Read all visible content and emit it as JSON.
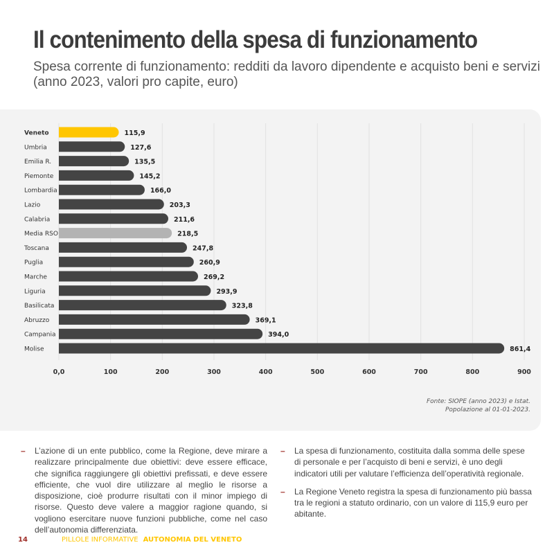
{
  "header": {
    "title": "Il contenimento della spesa di funzionamento",
    "subtitle": "Spesa corrente di funzionamento: redditi da lavoro dipendente e acquisto beni e servizi (anno 2023, valori pro capite, euro)"
  },
  "chart_data": {
    "type": "bar",
    "orientation": "horizontal",
    "categories": [
      "Veneto",
      "Umbria",
      "Emilia R.",
      "Piemonte",
      "Lombardia",
      "Lazio",
      "Calabria",
      "Media RSO",
      "Toscana",
      "Puglia",
      "Marche",
      "Liguria",
      "Basilicata",
      "Abruzzo",
      "Campania",
      "Molise"
    ],
    "values": [
      115.9,
      127.6,
      135.5,
      145.2,
      166.0,
      203.3,
      211.6,
      218.5,
      247.8,
      260.9,
      269.2,
      293.9,
      323.8,
      369.1,
      394.0,
      861.4
    ],
    "labels": [
      "115,9",
      "127,6",
      "135,5",
      "145,2",
      "166,0",
      "203,3",
      "211,6",
      "218,5",
      "247,8",
      "260,9",
      "269,2",
      "293,9",
      "323,8",
      "369,1",
      "394,0",
      "861,4"
    ],
    "xlim": [
      0,
      900
    ],
    "xticks": [
      "0,0",
      "100",
      "200",
      "300",
      "400",
      "500",
      "600",
      "700",
      "800",
      "900"
    ],
    "colors": {
      "default": "#444444",
      "Veneto": "#ffc600",
      "Media RSO": "#b3b3b3"
    },
    "grid": true
  },
  "source": {
    "line1": "Fonte: SIOPE (anno 2023) e Istat.",
    "line2": "Popolazione al  01-01-2023."
  },
  "text": {
    "left": [
      "L’azione di un ente pubblico, come la Regione, deve mirare a realizzare principalmente due obiettivi: deve essere efficace, che significa raggiungere gli obiettivi prefissati, e deve essere efficiente, che vuol dire utilizzare al meglio le risorse a disposizione, cioè produrre risultati con il minor impiego di risorse. Questo deve valere a maggior ragione quando, si vogliono esercitare nuove funzioni pubbliche, come nel caso dell’autonomia differenziata."
    ],
    "right": [
      "La spesa di funzionamento, costituita dalla somma delle spese di personale e per l’acquisto di beni e servizi, è uno degli indicatori utili per valutare l’efficienza dell’operatività regionale.",
      "La Regione Veneto registra la spesa di funzionamento più bassa tra le regioni a statuto ordinario, con un valore di 115,9  euro per abitante."
    ]
  },
  "footer": {
    "page": "14",
    "series": "PILLOLE INFORMATIVE",
    "brand": "AUTONOMIA DEL VENETO"
  }
}
